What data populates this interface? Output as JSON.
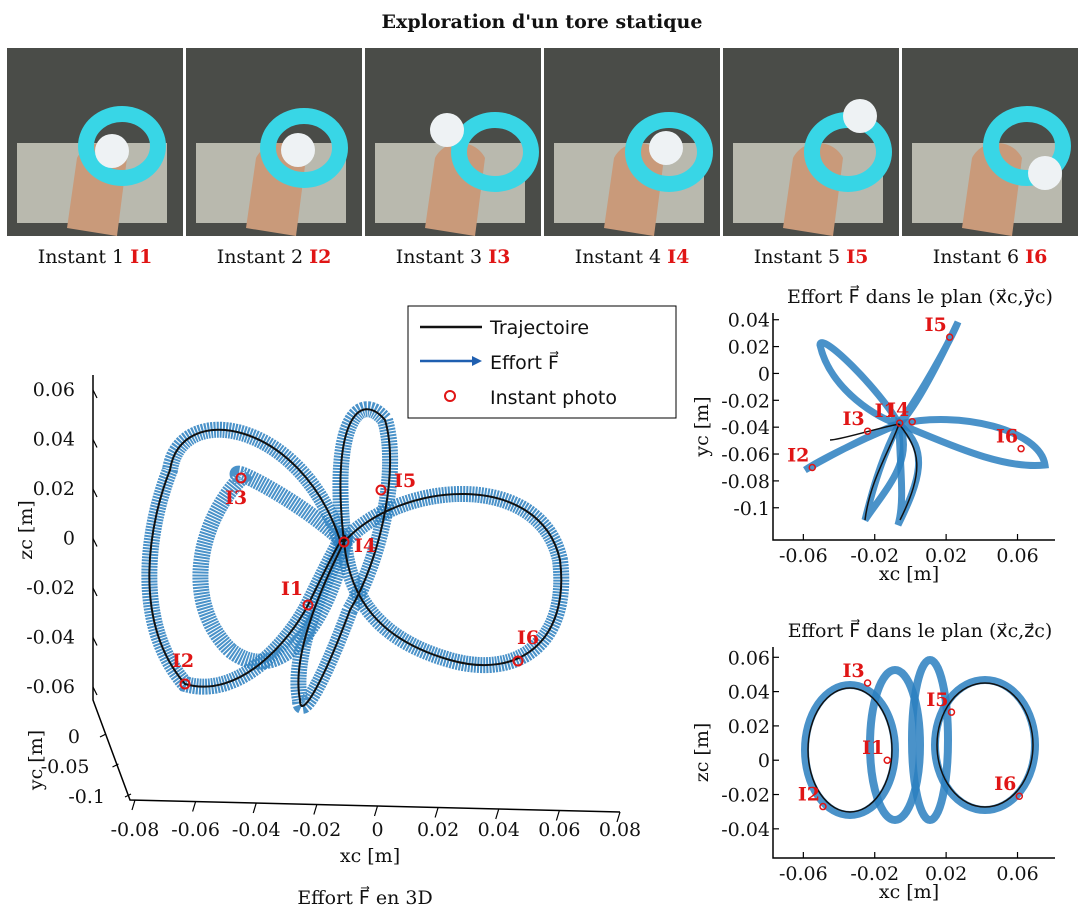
{
  "title": "Exploration d'un tore statique",
  "photos": [
    {
      "caption": "Instant 1",
      "tag": "I1"
    },
    {
      "caption": "Instant 2",
      "tag": "I2"
    },
    {
      "caption": "Instant 3",
      "tag": "I3"
    },
    {
      "caption": "Instant 4",
      "tag": "I4"
    },
    {
      "caption": "Instant 5",
      "tag": "I5"
    },
    {
      "caption": "Instant 6",
      "tag": "I6"
    }
  ],
  "plot3d": {
    "title": "Effort F⃗ en 3D",
    "xlabel": "xc [m]",
    "ylabel": "yc [m]",
    "zlabel": "zc [m]",
    "xticks": [
      -0.08,
      -0.06,
      -0.04,
      -0.02,
      0,
      0.02,
      0.04,
      0.06,
      0.08
    ],
    "yticks": [
      0,
      -0.05,
      -0.1
    ],
    "zticks": [
      0.06,
      0.04,
      0.02,
      0,
      -0.02,
      -0.04,
      -0.06
    ],
    "legend": [
      "Trajectoire",
      "Effort F⃗",
      "Instant photo"
    ],
    "instants": [
      "I1",
      "I2",
      "I3",
      "I4",
      "I5",
      "I6"
    ]
  },
  "plot_xy": {
    "title": "Effort F⃗ dans le plan (x⃗c,y⃗c)",
    "xlabel": "xc [m]",
    "ylabel": "yc [m]",
    "xlim": [
      -0.077,
      0.081
    ],
    "ylim": [
      -0.124,
      0.045
    ],
    "xticks": [
      -0.06,
      -0.02,
      0.02,
      0.06
    ],
    "yticks": [
      0.04,
      0.02,
      0,
      -0.02,
      -0.04,
      -0.06,
      -0.08,
      -0.1
    ],
    "points": {
      "labels": [
        "I1",
        "I2",
        "I3",
        "I4",
        "I5",
        "I6"
      ],
      "x": [
        -0.006,
        -0.055,
        -0.024,
        0.001,
        0.022,
        0.062
      ],
      "y": [
        -0.037,
        -0.07,
        -0.043,
        -0.036,
        0.027,
        -0.056
      ]
    }
  },
  "plot_xz": {
    "title": "Effort F⃗ dans le plan (x⃗c,z⃗c)",
    "xlabel": "xc [m]",
    "ylabel": "zc [m]",
    "xlim": [
      -0.077,
      0.081
    ],
    "ylim": [
      -0.057,
      0.066
    ],
    "xticks": [
      -0.06,
      -0.02,
      0.02,
      0.06
    ],
    "yticks": [
      0.06,
      0.04,
      0.02,
      0,
      -0.02,
      -0.04
    ],
    "points": {
      "labels": [
        "I1",
        "I2",
        "I3",
        "I5",
        "I6"
      ],
      "x": [
        -0.013,
        -0.049,
        -0.024,
        0.023,
        0.061
      ],
      "y": [
        0.0,
        -0.027,
        0.045,
        0.028,
        -0.021
      ]
    }
  }
}
